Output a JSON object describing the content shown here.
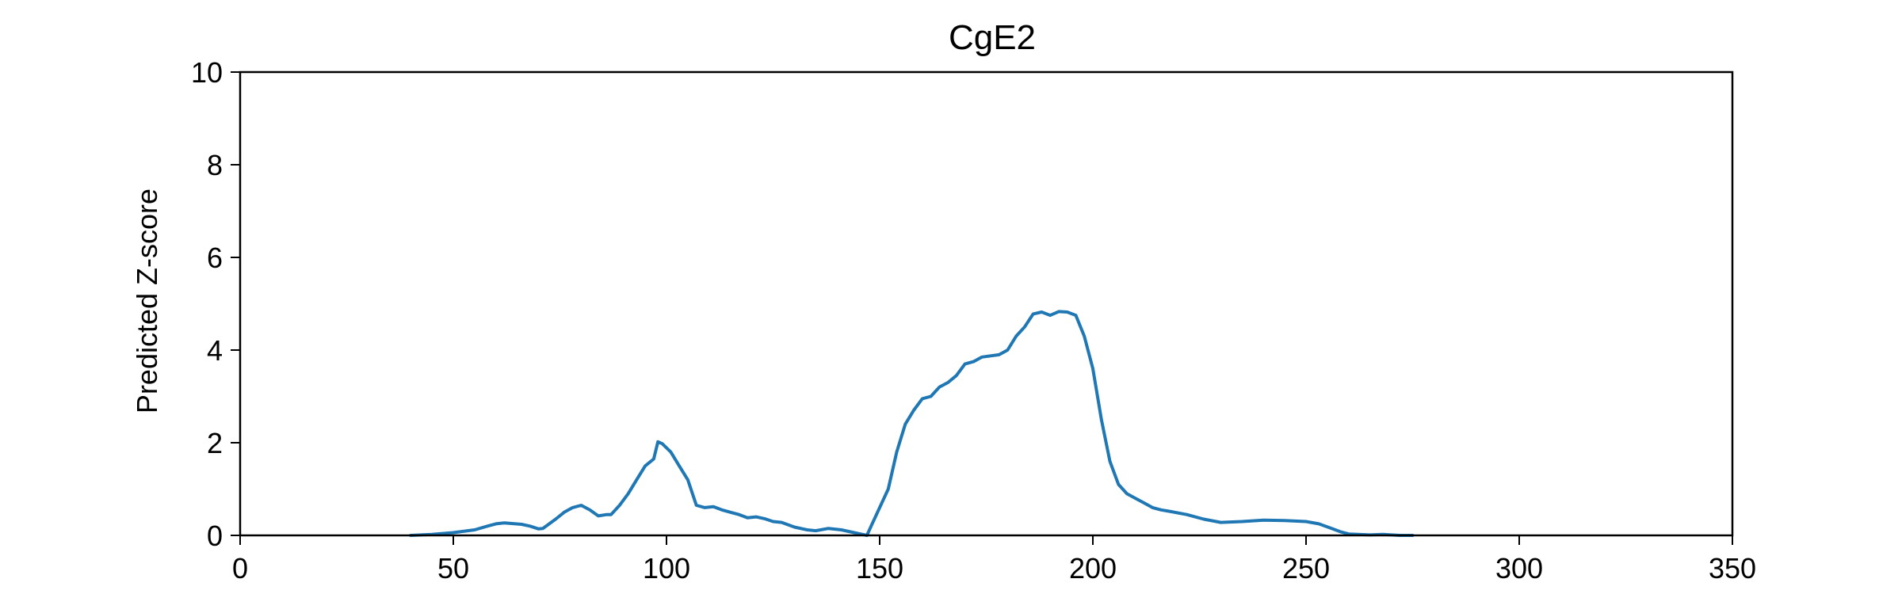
{
  "chart_data": {
    "type": "line",
    "title": "CgE2",
    "xlabel": "",
    "ylabel": "Predicted Z-score",
    "xlim": [
      0,
      350
    ],
    "ylim": [
      0,
      10
    ],
    "xticks": [
      0,
      50,
      100,
      150,
      200,
      250,
      300,
      350
    ],
    "yticks": [
      0,
      2,
      4,
      6,
      8,
      10
    ],
    "grid": false,
    "line_color": "#1f77b4",
    "series": [
      {
        "points": [
          [
            40,
            0.0
          ],
          [
            45,
            0.02
          ],
          [
            50,
            0.06
          ],
          [
            55,
            0.12
          ],
          [
            58,
            0.2
          ],
          [
            60,
            0.25
          ],
          [
            62,
            0.27
          ],
          [
            66,
            0.24
          ],
          [
            68,
            0.2
          ],
          [
            70,
            0.14
          ],
          [
            71,
            0.15
          ],
          [
            74,
            0.35
          ],
          [
            76,
            0.5
          ],
          [
            78,
            0.6
          ],
          [
            80,
            0.65
          ],
          [
            82,
            0.55
          ],
          [
            84,
            0.42
          ],
          [
            86,
            0.45
          ],
          [
            87,
            0.45
          ],
          [
            89,
            0.65
          ],
          [
            91,
            0.9
          ],
          [
            93,
            1.2
          ],
          [
            95,
            1.5
          ],
          [
            97,
            1.65
          ],
          [
            98,
            2.02
          ],
          [
            99,
            1.98
          ],
          [
            101,
            1.8
          ],
          [
            103,
            1.5
          ],
          [
            105,
            1.2
          ],
          [
            107,
            0.65
          ],
          [
            109,
            0.6
          ],
          [
            111,
            0.62
          ],
          [
            113,
            0.55
          ],
          [
            115,
            0.5
          ],
          [
            117,
            0.45
          ],
          [
            119,
            0.38
          ],
          [
            121,
            0.4
          ],
          [
            123,
            0.36
          ],
          [
            125,
            0.3
          ],
          [
            127,
            0.28
          ],
          [
            130,
            0.18
          ],
          [
            133,
            0.12
          ],
          [
            135,
            0.1
          ],
          [
            138,
            0.15
          ],
          [
            141,
            0.12
          ],
          [
            144,
            0.06
          ],
          [
            146,
            0.02
          ],
          [
            147,
            0.0
          ],
          [
            148,
            0.2
          ],
          [
            150,
            0.6
          ],
          [
            152,
            1.0
          ],
          [
            154,
            1.8
          ],
          [
            156,
            2.4
          ],
          [
            158,
            2.7
          ],
          [
            160,
            2.95
          ],
          [
            162,
            3.0
          ],
          [
            164,
            3.2
          ],
          [
            166,
            3.3
          ],
          [
            168,
            3.45
          ],
          [
            170,
            3.7
          ],
          [
            172,
            3.75
          ],
          [
            174,
            3.85
          ],
          [
            178,
            3.9
          ],
          [
            180,
            4.0
          ],
          [
            182,
            4.3
          ],
          [
            184,
            4.5
          ],
          [
            186,
            4.78
          ],
          [
            188,
            4.82
          ],
          [
            190,
            4.75
          ],
          [
            192,
            4.83
          ],
          [
            194,
            4.82
          ],
          [
            196,
            4.75
          ],
          [
            198,
            4.3
          ],
          [
            200,
            3.6
          ],
          [
            202,
            2.5
          ],
          [
            204,
            1.6
          ],
          [
            206,
            1.1
          ],
          [
            208,
            0.9
          ],
          [
            210,
            0.8
          ],
          [
            212,
            0.7
          ],
          [
            214,
            0.6
          ],
          [
            216,
            0.55
          ],
          [
            218,
            0.52
          ],
          [
            222,
            0.45
          ],
          [
            226,
            0.35
          ],
          [
            230,
            0.28
          ],
          [
            235,
            0.3
          ],
          [
            240,
            0.33
          ],
          [
            245,
            0.32
          ],
          [
            250,
            0.3
          ],
          [
            253,
            0.25
          ],
          [
            256,
            0.15
          ],
          [
            258,
            0.08
          ],
          [
            260,
            0.03
          ],
          [
            265,
            0.01
          ],
          [
            268,
            0.02
          ],
          [
            272,
            0.0
          ],
          [
            275,
            0.0
          ]
        ]
      }
    ]
  }
}
